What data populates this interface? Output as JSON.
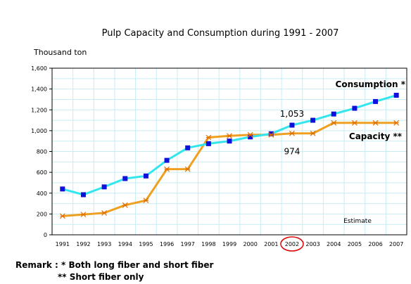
{
  "chart_data": {
    "type": "line",
    "title": "Pulp Capacity and Consumption during 1991 - 2007",
    "ylabel": "Thousand ton",
    "xlabel": "",
    "ylim": [
      0,
      1600
    ],
    "yticks": [
      "0",
      "200",
      "400",
      "600",
      "800",
      "1,000",
      "1,200",
      "1,400",
      "1,600"
    ],
    "categories": [
      "1991",
      "1992",
      "1993",
      "1994",
      "1995",
      "1996",
      "1997",
      "1998",
      "1999",
      "2000",
      "2001",
      "2002",
      "2003",
      "2004",
      "2005",
      "2006",
      "2007"
    ],
    "grid": true,
    "series": [
      {
        "name": "Consumption *",
        "color": "#33e6ee",
        "marker": "square",
        "marker_color": "#1010dd",
        "values": [
          440,
          385,
          460,
          540,
          565,
          715,
          835,
          875,
          900,
          940,
          970,
          1053,
          1100,
          1160,
          1215,
          1280,
          1340
        ]
      },
      {
        "name": "Capacity **",
        "color": "#f0a020",
        "marker": "star",
        "marker_color": "#e07000",
        "values": [
          180,
          195,
          210,
          285,
          330,
          630,
          630,
          935,
          950,
          960,
          960,
          974,
          974,
          1075,
          1075,
          1075,
          1075
        ]
      }
    ],
    "annotations": [
      {
        "text": "1,053",
        "category": "2002",
        "value": 1053
      },
      {
        "text": "974",
        "category": "2002",
        "value": 974
      },
      {
        "text": "Estimate"
      }
    ],
    "highlight_category": "2002",
    "highlight_color": "#dd0000"
  },
  "remarks": {
    "line1": "Remark : * Both long fiber and short fiber",
    "line2": "** Short fiber only"
  }
}
